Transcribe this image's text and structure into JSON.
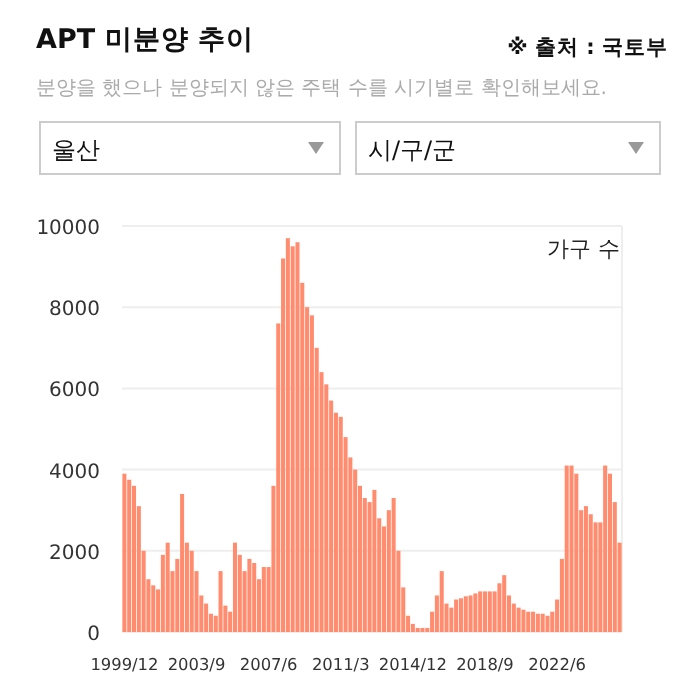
{
  "chart_data": {
    "type": "bar",
    "title": "APT 미분양 추이",
    "subtitle": "분양을 했으나 분양되지 않은 주택 수를 시기별로 확인해보세요.",
    "annotations": [
      "※ 출처 : 국토부",
      "울산",
      "시/구/군"
    ],
    "ylabel": "가구 수",
    "categories": [
      "1999/12",
      null,
      null,
      null,
      null,
      null,
      null,
      null,
      null,
      null,
      null,
      null,
      null,
      null,
      null,
      "2003/9",
      null,
      null,
      null,
      null,
      null,
      null,
      null,
      null,
      null,
      null,
      null,
      null,
      null,
      null,
      "2007/6",
      null,
      null,
      null,
      null,
      null,
      null,
      null,
      null,
      null,
      null,
      null,
      null,
      null,
      null,
      "2011/3",
      null,
      null,
      null,
      null,
      null,
      null,
      null,
      null,
      null,
      null,
      null,
      null,
      null,
      null,
      "2014/12",
      null,
      null,
      null,
      null,
      null,
      null,
      null,
      null,
      null,
      null,
      null,
      null,
      null,
      null,
      "2018/9",
      null,
      null,
      null,
      null,
      null,
      null,
      null,
      null,
      null,
      null,
      null,
      null,
      null,
      null,
      "2022/6",
      null,
      null,
      null,
      null,
      null,
      null,
      null,
      null,
      null,
      null,
      null,
      null,
      null
    ],
    "values": [
      3900,
      3750,
      3600,
      3100,
      2000,
      1300,
      1150,
      1050,
      1900,
      2200,
      1500,
      1800,
      3400,
      2200,
      2000,
      1500,
      900,
      700,
      450,
      400,
      1500,
      650,
      500,
      2200,
      1900,
      1500,
      1800,
      1700,
      1300,
      1600,
      1600,
      3600,
      7600,
      9200,
      9700,
      9500,
      9600,
      8600,
      8000,
      7800,
      7000,
      6400,
      6100,
      5700,
      5400,
      5300,
      4800,
      4300,
      4000,
      3600,
      3300,
      3200,
      3500,
      2800,
      2600,
      3000,
      3300,
      2000,
      1100,
      400,
      200,
      100,
      100,
      100,
      500,
      900,
      1500,
      700,
      600,
      800,
      830,
      880,
      900,
      950,
      1000,
      1000,
      1000,
      1000,
      1200,
      1400,
      900,
      700,
      600,
      550,
      500,
      500,
      450,
      450,
      400,
      500,
      800,
      1800,
      4100,
      4100,
      3900,
      3000,
      3100,
      2900,
      2700,
      2700,
      4100,
      3900,
      3200,
      2200
    ],
    "color": "#ff8c6f",
    "ylim": [
      0,
      10000
    ],
    "yticks": [
      0,
      2000,
      4000,
      6000,
      8000,
      10000
    ],
    "grid": "y"
  }
}
